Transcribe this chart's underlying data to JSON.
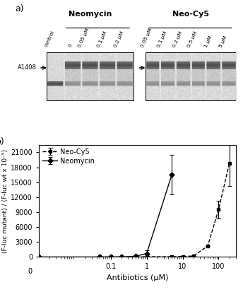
{
  "panel_a_label": "a)",
  "panel_b_label": "b)",
  "neomycin_label": "Neomycin",
  "neocY5_label": "Neo-Cy5",
  "neomycin_conc_labels": [
    "control",
    "0",
    "0.05 μM",
    "0.1 μM",
    "0.2 μM"
  ],
  "neocY5_conc_labels": [
    "0.05 μM",
    "0.1 μM",
    "0.2 μM",
    "0.5 μM",
    "1 μM",
    "5 μM"
  ],
  "a1408_label": "A1408",
  "xlabel": "Antibiotics (μM)",
  "ylabel": "(F-luc mutant) / (F-luc wt x 10⁻⁵)",
  "yticks": [
    0,
    3000,
    6000,
    9000,
    12000,
    15000,
    18000,
    21000
  ],
  "ylim": [
    0,
    22500
  ],
  "neomycin_x": [
    0.001,
    0.05,
    0.1,
    0.2,
    0.5,
    1.0,
    5.0
  ],
  "neomycin_y": [
    0.0,
    0.0,
    0.0,
    0.0,
    150,
    700,
    16500
  ],
  "neomycin_yerr": [
    0.0,
    0.0,
    0.0,
    0.0,
    0.0,
    600,
    4000
  ],
  "neocY5_x": [
    0.05,
    0.1,
    0.2,
    0.5,
    1.0,
    5.0,
    10.0,
    20.0,
    50.0,
    100.0,
    200.0
  ],
  "neocY5_y": [
    0.0,
    0.0,
    0.0,
    0.0,
    50,
    50,
    100,
    200,
    2200,
    9500,
    18800
  ],
  "neocY5_yerr": [
    0.0,
    0.0,
    0.0,
    0.0,
    0.0,
    0.0,
    0.0,
    0.0,
    0.0,
    1800,
    4500
  ],
  "line_color": "#000000",
  "bg_color": "#ffffff",
  "gel_bg": 0.85,
  "gel_dark_band": 0.35,
  "gel_mid_band": 0.6,
  "gel_light_band": 0.75
}
